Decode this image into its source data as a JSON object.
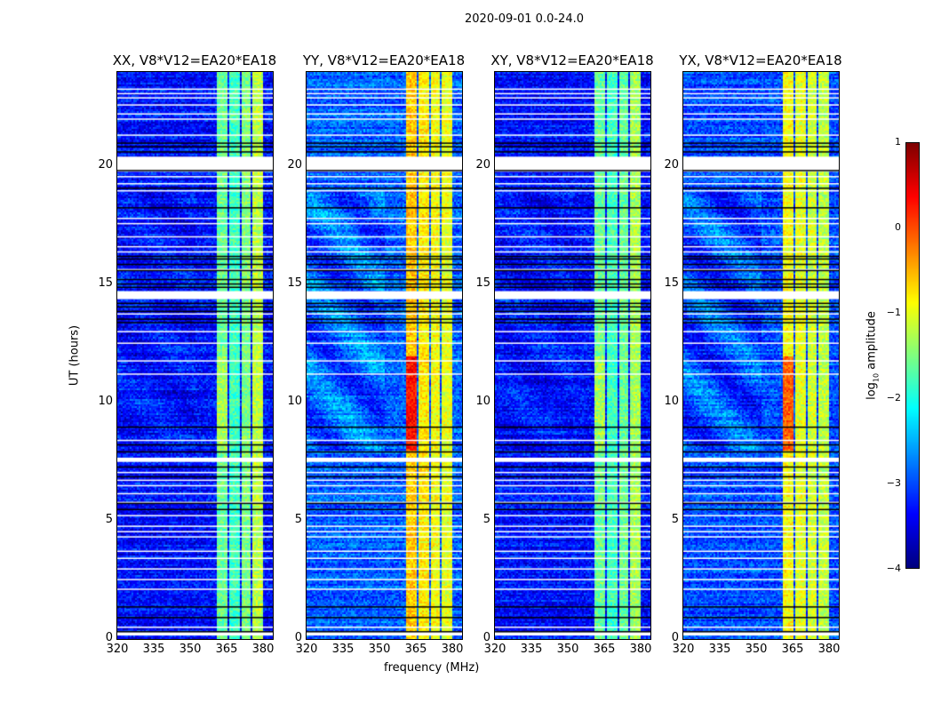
{
  "chart_data": {
    "type": "heatmap",
    "title": "2020-09-01 0.0-24.0",
    "xlabel": "frequency (MHz)",
    "ylabel": "UT (hours)",
    "xlim": [
      320,
      384
    ],
    "ylim": [
      0,
      24
    ],
    "xticks": [
      "320",
      "335",
      "350",
      "365",
      "380"
    ],
    "yticks": [
      "0",
      "5",
      "10",
      "15",
      "20"
    ],
    "colorbar": {
      "label": "log",
      "label_sub": "10",
      "label_rest": " amplitude",
      "colormap": "jet",
      "range": [
        -4,
        1
      ],
      "ticks": [
        "1",
        "0",
        "−1",
        "−2",
        "−3",
        "−4"
      ]
    },
    "panels": [
      {
        "title": "XX, V8*V12=EA20*EA18",
        "background_level": -3.3,
        "band_levels": [
          -1.6,
          -1.8,
          -1.5,
          -1.2
        ],
        "hotspot_boost": 0.3
      },
      {
        "title": "YY, V8*V12=EA20*EA18",
        "background_level": -2.9,
        "band_levels": [
          -0.6,
          -0.8,
          -0.9,
          -1.0
        ],
        "hotspot_boost": 0.9
      },
      {
        "title": "XY, V8*V12=EA20*EA18",
        "background_level": -3.3,
        "band_levels": [
          -1.6,
          -1.8,
          -1.6,
          -1.3
        ],
        "hotspot_boost": 0.3
      },
      {
        "title": "YX, V8*V12=EA20*EA18",
        "background_level": -3.0,
        "band_levels": [
          -0.9,
          -1.0,
          -1.1,
          -1.2
        ],
        "hotspot_boost": 0.8
      }
    ],
    "band_columns_mhz": [
      [
        360.4,
        365.2
      ],
      [
        365.8,
        370.0
      ],
      [
        370.5,
        374.6
      ],
      [
        375.1,
        379.9
      ]
    ],
    "hotspot_hours": [
      8.0,
      12.0
    ],
    "flagged_blocks_hours": [
      [
        19.77,
        20.41
      ],
      [
        14.37,
        14.71
      ],
      [
        7.47,
        7.65
      ],
      [
        0.11,
        0.26
      ]
    ],
    "flagged_lines_hours": [
      23.3,
      23.11,
      22.93,
      22.63,
      22.25,
      22.03,
      21.35,
      19.59,
      19.29,
      18.99,
      17.82,
      17.6,
      17.04,
      16.62,
      16.4,
      15.65,
      13.77,
      13.02,
      12.53,
      11.78,
      11.22,
      8.41,
      7.05,
      6.72,
      6.49,
      6.15,
      5.78,
      5.22,
      4.77,
      4.54,
      4.32,
      3.71,
      3.41,
      2.96,
      2.51,
      2.1,
      0.49
    ],
    "dark_lines_hours": [
      21.01,
      20.86,
      20.64,
      19.85,
      19.1,
      18.27,
      16.21,
      16.1,
      15.87,
      15.61,
      15.23,
      15.04,
      14.9,
      14.22,
      14.07,
      13.88,
      13.55,
      13.4,
      8.97,
      8.22,
      7.92,
      7.28,
      6.87,
      5.74,
      5.48,
      1.35,
      0.9,
      0.3
    ]
  }
}
